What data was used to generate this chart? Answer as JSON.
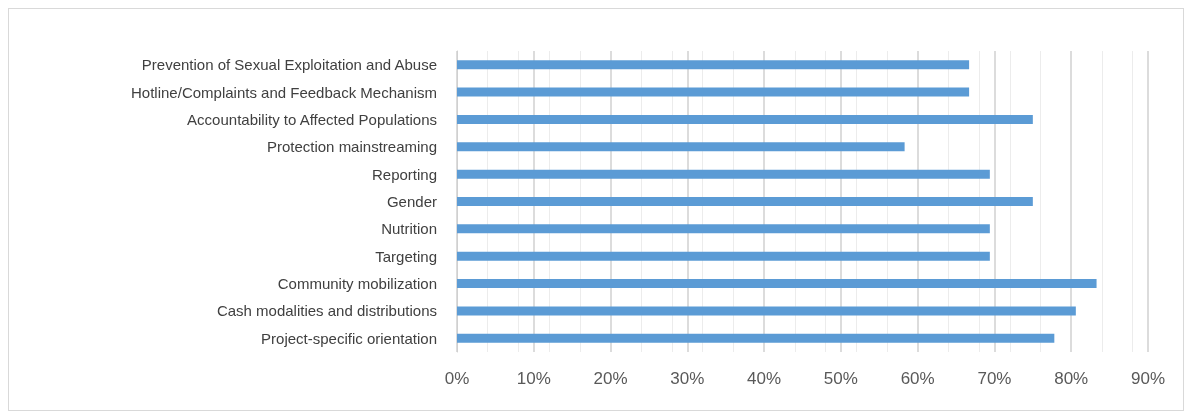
{
  "chart_data": {
    "type": "bar",
    "orientation": "horizontal",
    "categories": [
      "Prevention of Sexual Exploitation and Abuse",
      "Hotline/Complaints and Feedback Mechanism",
      "Accountability to Affected Populations",
      "Protection mainstreaming",
      "Reporting",
      "Gender",
      "Nutrition",
      "Targeting",
      "Community mobilization",
      "Cash modalities and distributions",
      "Project-specific orientation"
    ],
    "values": [
      66.7,
      66.7,
      75,
      58.3,
      69.4,
      75,
      69.4,
      69.4,
      83.3,
      80.6,
      77.8
    ],
    "color": "#5b9bd5",
    "xlim": [
      0,
      90
    ],
    "xticks": [
      {
        "value": 0,
        "label": "0%"
      },
      {
        "value": 10,
        "label": "10%"
      },
      {
        "value": 20,
        "label": "20%"
      },
      {
        "value": 30,
        "label": "30%"
      },
      {
        "value": 40,
        "label": "40%"
      },
      {
        "value": 50,
        "label": "50%"
      },
      {
        "value": 60,
        "label": "60%"
      },
      {
        "value": 70,
        "label": "70%"
      },
      {
        "value": 80,
        "label": "80%"
      },
      {
        "value": 90,
        "label": "90%"
      }
    ],
    "grid": true
  }
}
